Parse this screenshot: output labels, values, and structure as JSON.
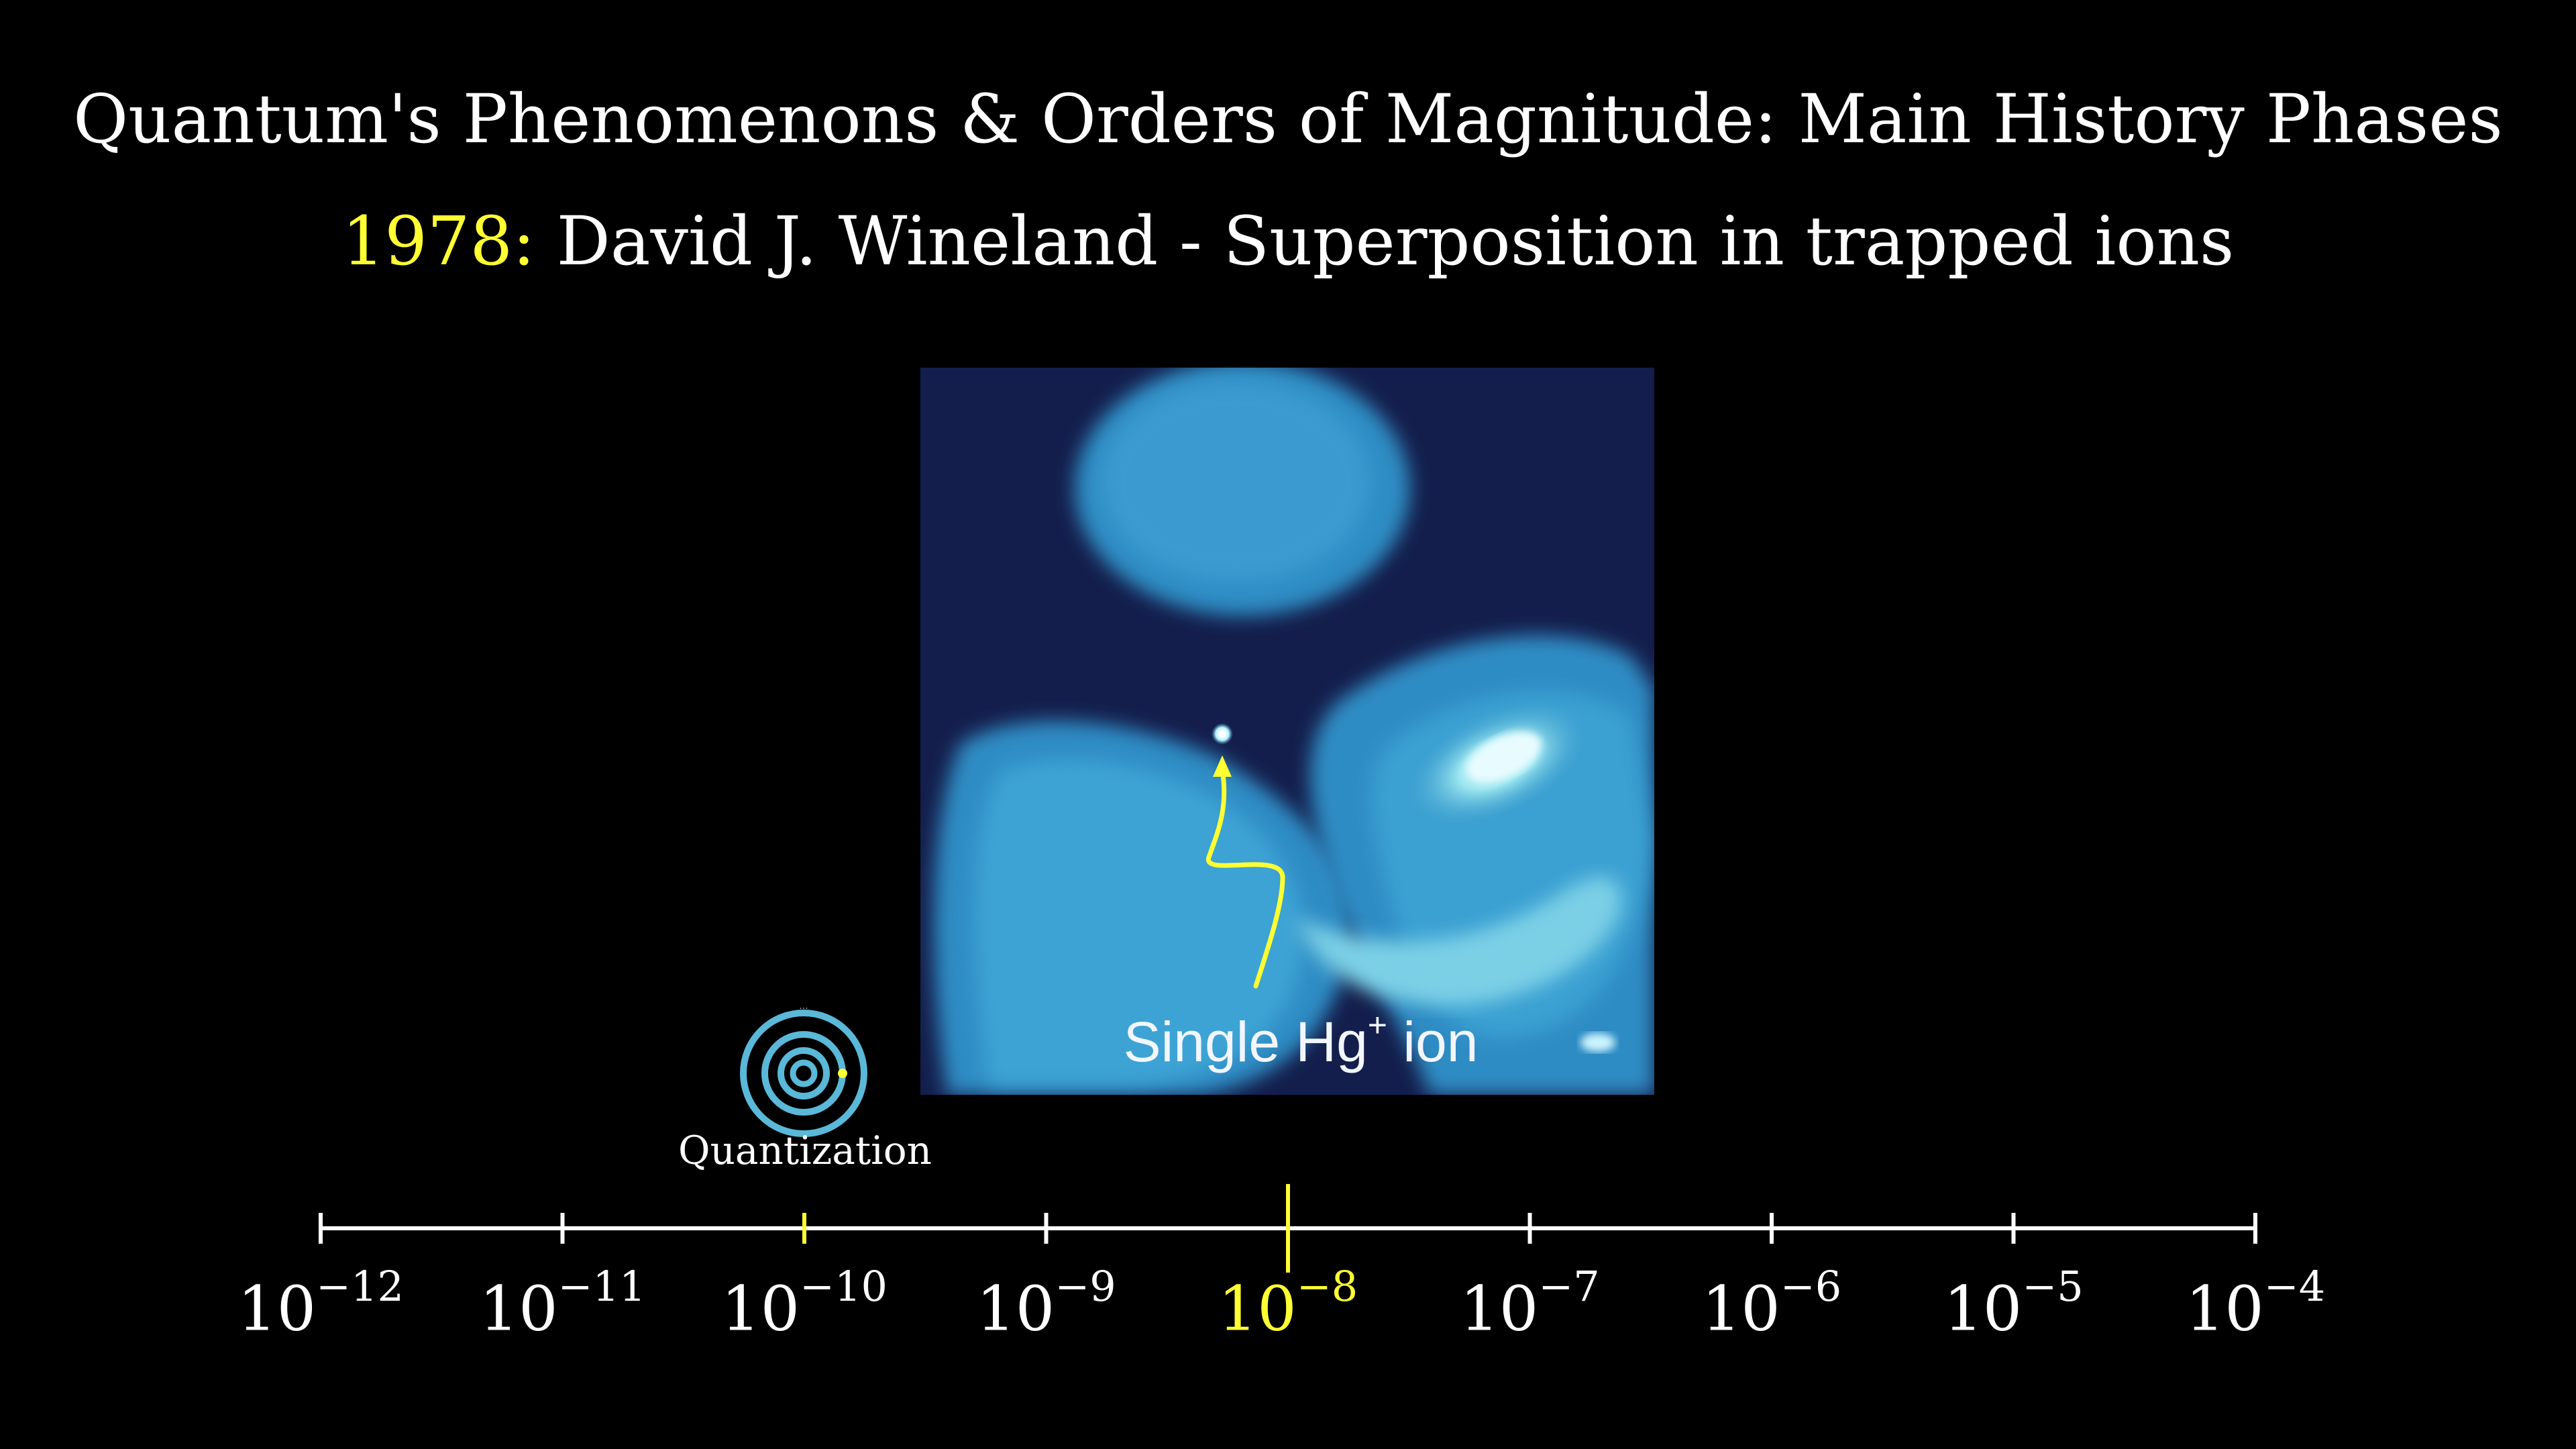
{
  "slide": {
    "title": "Quantum's Phenomenons & Orders of Magnitude: Main History Phases",
    "subtitle_year": "1978:",
    "subtitle_text": "David J. Wineland - Superposition in trapped ions"
  },
  "image": {
    "caption_main": "Single Hg",
    "caption_sup": "+",
    "caption_tail": " ion",
    "arrow_color": "#ffff33"
  },
  "marker": {
    "label": "Quantization",
    "icon": "atom-orbits-icon",
    "color": "#5ab8d8"
  },
  "timeline": {
    "ticks": [
      {
        "base": "10",
        "exp": "−12",
        "active": false
      },
      {
        "base": "10",
        "exp": "−11",
        "active": false
      },
      {
        "base": "10",
        "exp": "−10",
        "active": false
      },
      {
        "base": "10",
        "exp": "−9",
        "active": false
      },
      {
        "base": "10",
        "exp": "−8",
        "active": true
      },
      {
        "base": "10",
        "exp": "−7",
        "active": false
      },
      {
        "base": "10",
        "exp": "−6",
        "active": false
      },
      {
        "base": "10",
        "exp": "−5",
        "active": false
      },
      {
        "base": "10",
        "exp": "−4",
        "active": false
      }
    ],
    "highlight_color": "#ffff33",
    "axis_color": "#ffffff"
  }
}
